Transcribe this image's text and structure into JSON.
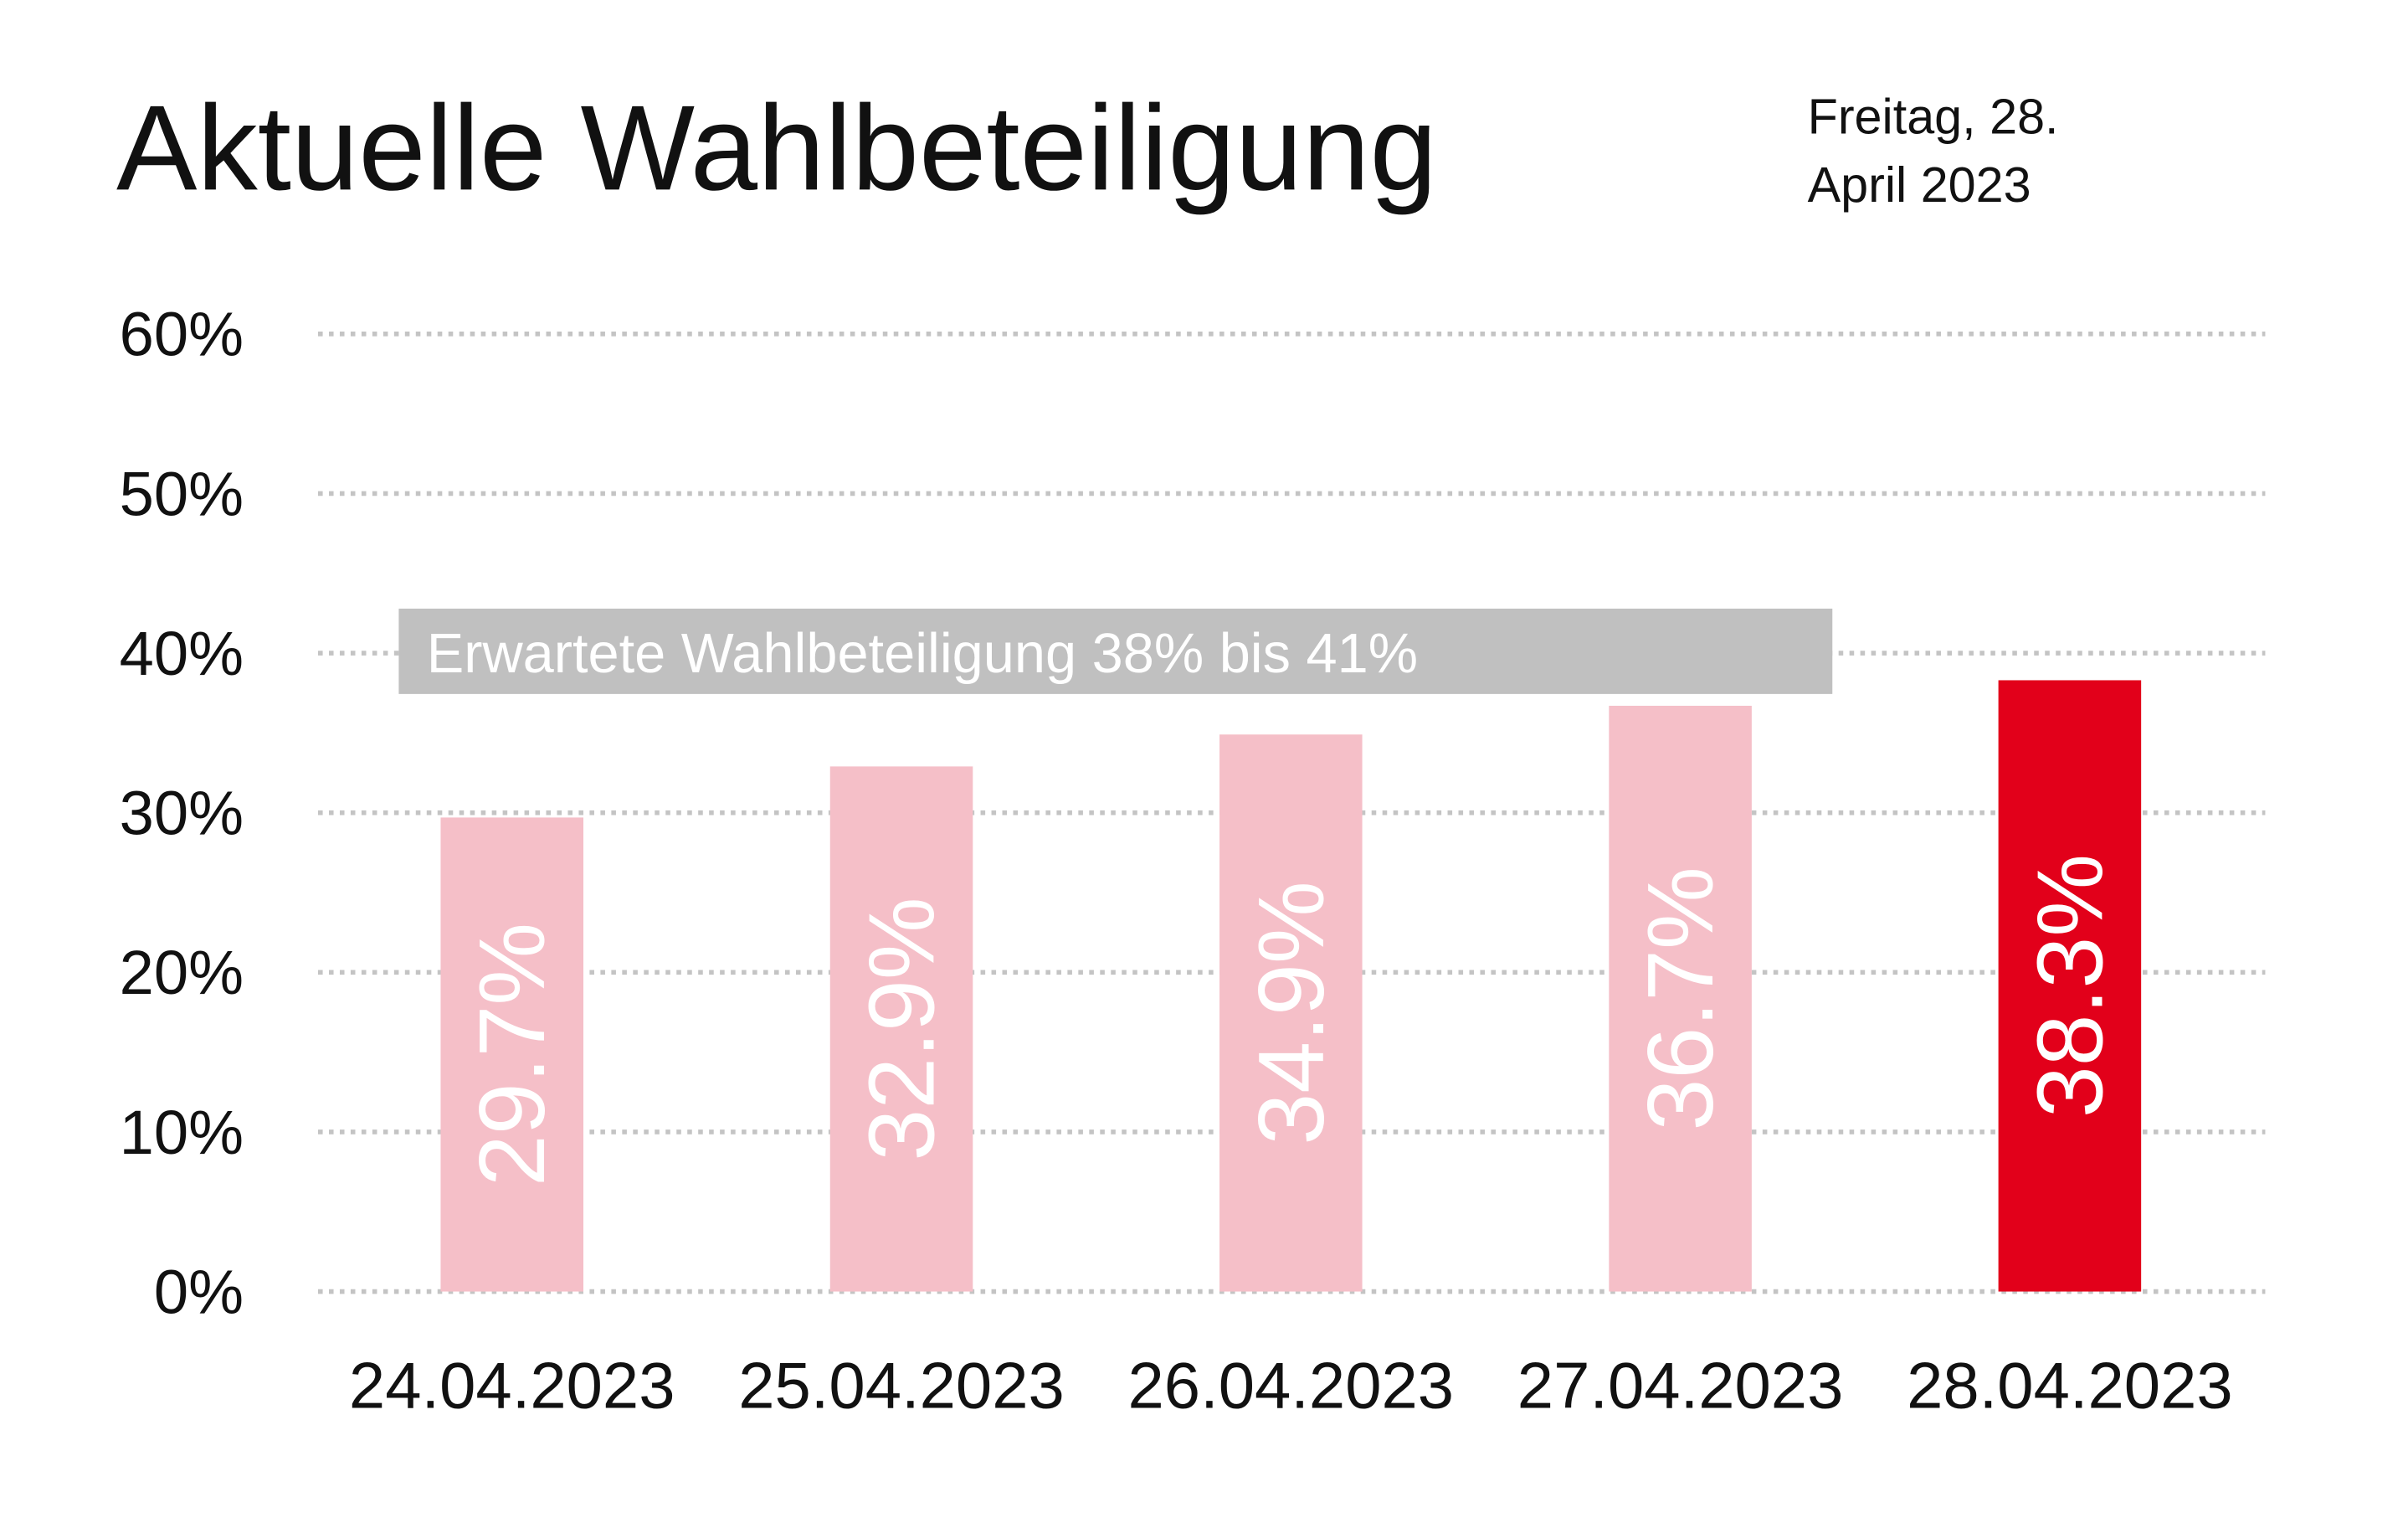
{
  "chart_data": {
    "type": "bar",
    "title": "Aktuelle Wahlbeteiligung",
    "subtitle": [
      "Freitag, 28.",
      "April 2023"
    ],
    "annotation": "Erwartete Wahlbeteiligung 38% bis 41%",
    "categories": [
      "24.04.2023",
      "25.04.2023",
      "26.04.2023",
      "27.04.2023",
      "28.04.2023"
    ],
    "values": [
      29.7,
      32.9,
      34.9,
      36.7,
      38.3
    ],
    "value_labels": [
      "29.7%",
      "32.9%",
      "34.9%",
      "36.7%",
      "38.3%"
    ],
    "colors": [
      "#f5bfc8",
      "#f5bfc8",
      "#f5bfc8",
      "#f5bfc8",
      "#e2001a"
    ],
    "ylim": [
      0,
      60
    ],
    "yticks": [
      {
        "value": 0,
        "label": "0%"
      },
      {
        "value": 10,
        "label": "10%"
      },
      {
        "value": 20,
        "label": "20%"
      },
      {
        "value": 30,
        "label": "30%"
      },
      {
        "value": 40,
        "label": "40%"
      },
      {
        "value": 50,
        "label": "50%"
      },
      {
        "value": 60,
        "label": "60%"
      }
    ],
    "grid": true
  }
}
